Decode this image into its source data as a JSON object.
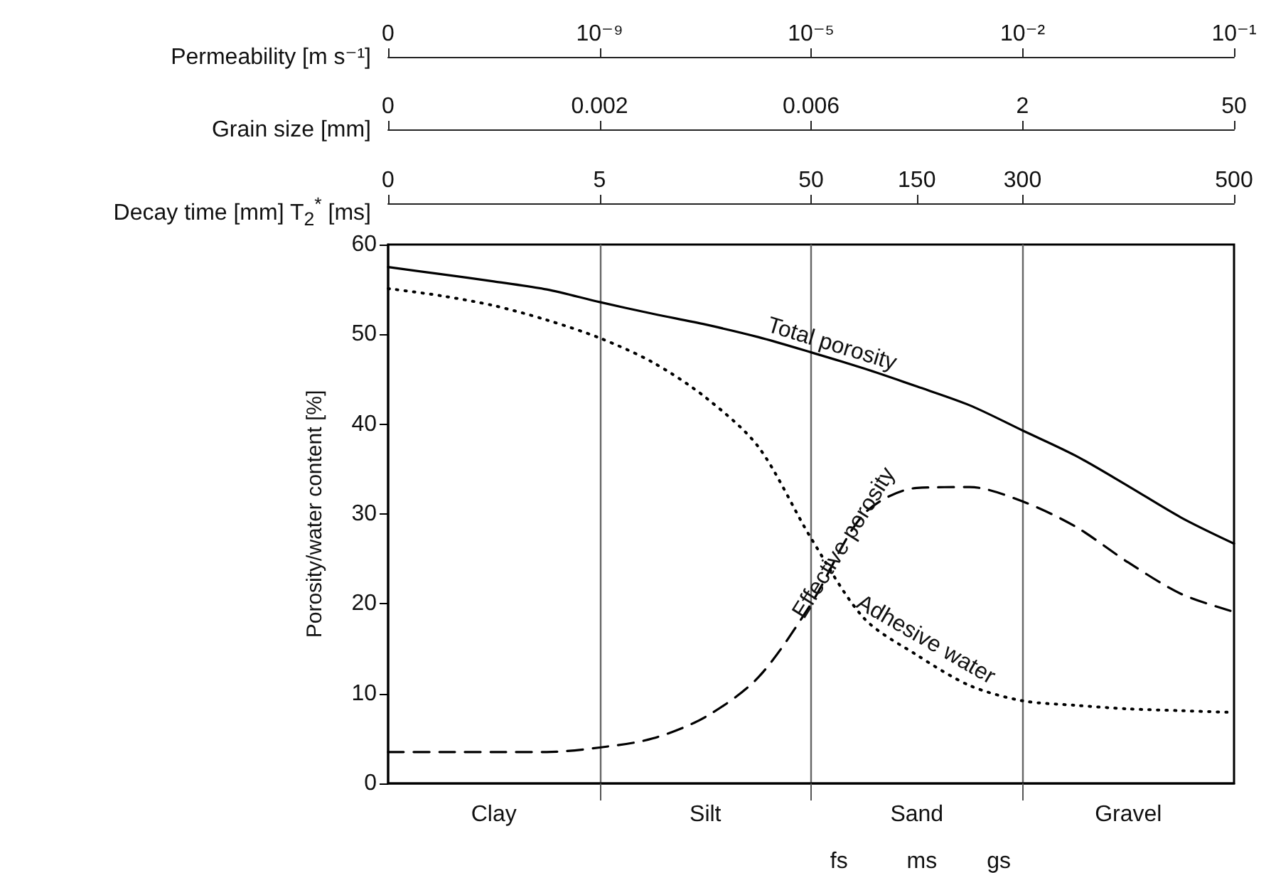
{
  "chart_data": {
    "type": "line",
    "ylabel": "Porosity/water content [%]",
    "ylim": [
      0,
      60
    ],
    "yticks": [
      0,
      10,
      20,
      30,
      40,
      50,
      60
    ],
    "categories": [
      null,
      null,
      "Clay",
      null,
      null,
      null,
      "Silt",
      null,
      null,
      null,
      "Sand",
      null,
      null,
      null,
      "Gravel",
      null,
      null
    ],
    "grid": "x",
    "marker": "none",
    "series": [
      {
        "color": "#000000",
        "line_style": "solid",
        "values": [
          57.5,
          56.7,
          55.9,
          55.0,
          53.6,
          52.3,
          51.1,
          49.7,
          48.0,
          46.2,
          44.2,
          42.1,
          39.3,
          36.5,
          33.1,
          29.6,
          26.7
        ]
      },
      {
        "color": "#000000",
        "line_style": "dashed",
        "values": [
          3.5,
          3.5,
          3.5,
          3.5,
          4.0,
          5.0,
          7.4,
          11.8,
          20.0,
          30.0,
          32.9,
          33.0,
          31.4,
          28.6,
          24.6,
          21.1,
          19.1
        ]
      },
      {
        "color": "#000000",
        "line_style": "dotted",
        "values": [
          55.1,
          54.3,
          53.2,
          51.6,
          49.6,
          46.9,
          43.0,
          37.5,
          27.3,
          18.4,
          14.3,
          10.9,
          9.2,
          8.7,
          8.3,
          8.1,
          7.9
        ]
      }
    ],
    "annotations": [
      "Permeability [m s⁻¹]",
      "0",
      "10⁻⁹",
      "10⁻⁵",
      "10⁻²",
      "10⁻¹",
      "Grain size [mm]",
      "0",
      "0.002",
      "0.006",
      "2",
      "50",
      "Decay time [mm]  T$_{2}$$^{*}$ [ms]",
      "0",
      "5",
      "50",
      "150",
      "300",
      "500",
      "Total porosity",
      "Effective porosity",
      "Adhesive water",
      "fs",
      "ms",
      "gs"
    ]
  }
}
